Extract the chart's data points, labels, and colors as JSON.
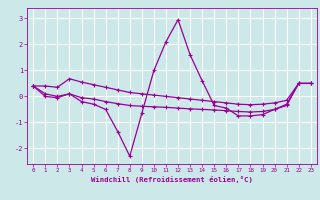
{
  "line1_volatile": {
    "x": [
      0,
      1,
      2,
      3,
      4,
      5,
      6,
      7,
      8,
      9,
      10,
      11,
      12,
      13,
      14,
      15,
      16,
      17,
      18,
      19,
      20,
      21,
      22,
      23
    ],
    "y": [
      0.4,
      0.0,
      -0.05,
      0.1,
      -0.2,
      -0.3,
      -0.5,
      -1.35,
      -2.3,
      -0.65,
      1.0,
      2.1,
      2.95,
      1.6,
      0.6,
      -0.35,
      -0.45,
      -0.75,
      -0.75,
      -0.7,
      -0.5,
      -0.3,
      0.5,
      0.5
    ]
  },
  "line2_flat_high": {
    "x": [
      0,
      1,
      2,
      3,
      4,
      5,
      6,
      7,
      8,
      9,
      10,
      11,
      12,
      13,
      14,
      15,
      16,
      17,
      18,
      19,
      20,
      21,
      22,
      23
    ],
    "y": [
      0.4,
      0.4,
      0.35,
      0.68,
      0.55,
      0.45,
      0.35,
      0.25,
      0.15,
      0.1,
      0.05,
      0.0,
      -0.05,
      -0.1,
      -0.15,
      -0.2,
      -0.25,
      -0.3,
      -0.32,
      -0.3,
      -0.25,
      -0.15,
      0.5,
      0.5
    ]
  },
  "line3_flat_low": {
    "x": [
      0,
      1,
      2,
      3,
      4,
      5,
      6,
      7,
      8,
      9,
      10,
      11,
      12,
      13,
      14,
      15,
      16,
      17,
      18,
      19,
      20,
      21,
      22,
      23
    ],
    "y": [
      0.4,
      0.1,
      0.0,
      0.1,
      -0.05,
      -0.1,
      -0.2,
      -0.28,
      -0.35,
      -0.38,
      -0.4,
      -0.42,
      -0.45,
      -0.48,
      -0.5,
      -0.52,
      -0.55,
      -0.58,
      -0.6,
      -0.58,
      -0.5,
      -0.35,
      0.5,
      0.5
    ]
  },
  "line_color": "#990099",
  "marker": "+",
  "markersize": 3,
  "markeredgewidth": 0.8,
  "bg_color": "#cce8e8",
  "grid_color": "#ffffff",
  "xlabel": "Windchill (Refroidissement éolien,°C)",
  "xlabel_color": "#990099",
  "tick_color": "#990099",
  "ylim": [
    -2.6,
    3.4
  ],
  "xlim": [
    -0.5,
    23.5
  ],
  "yticks": [
    -2,
    -1,
    0,
    1,
    2,
    3
  ],
  "xticks": [
    0,
    1,
    2,
    3,
    4,
    5,
    6,
    7,
    8,
    9,
    10,
    11,
    12,
    13,
    14,
    15,
    16,
    17,
    18,
    19,
    20,
    21,
    22,
    23
  ],
  "linewidth": 0.9
}
